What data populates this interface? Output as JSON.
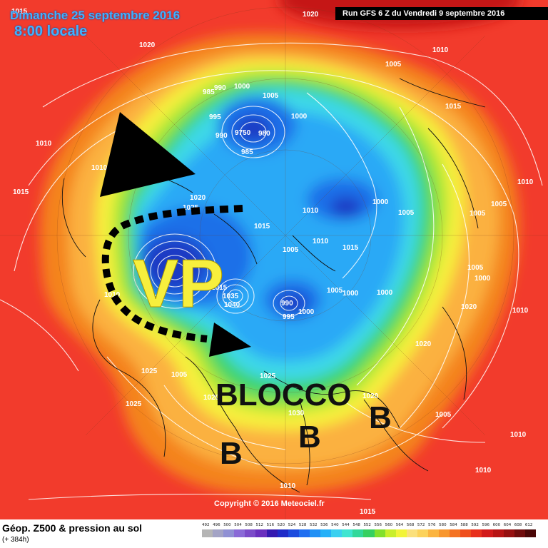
{
  "header": {
    "date": "Dimanche 25 septembre 2016",
    "time": "8:00 locale",
    "run": "Run GFS 6 Z du Vendredi 9 septembre 2016"
  },
  "annotations": {
    "vortex": "VP",
    "block": "BLOCCO",
    "low_marker": "B"
  },
  "isobars": {
    "labels": [
      "1015",
      "1020",
      "1010",
      "1005",
      "1000",
      "995",
      "990",
      "985",
      "980",
      "9750",
      "1025",
      "1030",
      "1035",
      "1040",
      "1045"
    ]
  },
  "footer": {
    "copyright": "Copyright © 2016 Meteociel.fr",
    "title": "Géop. Z500 & pression au sol",
    "forecast": "(+ 384h)"
  },
  "legend": {
    "scale": [
      {
        "v": "492",
        "c": "#b5b5b5"
      },
      {
        "v": "496",
        "c": "#a3a3c5"
      },
      {
        "v": "500",
        "c": "#9090d4"
      },
      {
        "v": "504",
        "c": "#8a6ad7"
      },
      {
        "v": "508",
        "c": "#7b4bc9"
      },
      {
        "v": "512",
        "c": "#6a2fbe"
      },
      {
        "v": "516",
        "c": "#3419b0"
      },
      {
        "v": "520",
        "c": "#1e2bc8"
      },
      {
        "v": "524",
        "c": "#1b4bde"
      },
      {
        "v": "528",
        "c": "#1f6ef0"
      },
      {
        "v": "532",
        "c": "#2090f5"
      },
      {
        "v": "536",
        "c": "#25b0f8"
      },
      {
        "v": "540",
        "c": "#3ad0f0"
      },
      {
        "v": "544",
        "c": "#3fe5d0"
      },
      {
        "v": "548",
        "c": "#32d89a"
      },
      {
        "v": "552",
        "c": "#36d060"
      },
      {
        "v": "556",
        "c": "#82e02b"
      },
      {
        "v": "560",
        "c": "#c9ef2a"
      },
      {
        "v": "564",
        "c": "#f2f438"
      },
      {
        "v": "568",
        "c": "#fbe07c"
      },
      {
        "v": "572",
        "c": "#fcd25a"
      },
      {
        "v": "576",
        "c": "#fbb43f"
      },
      {
        "v": "580",
        "c": "#f8962d"
      },
      {
        "v": "584",
        "c": "#f47222"
      },
      {
        "v": "588",
        "c": "#ef4e1c"
      },
      {
        "v": "592",
        "c": "#e8301c"
      },
      {
        "v": "596",
        "c": "#d21a1a"
      },
      {
        "v": "600",
        "c": "#b71414"
      },
      {
        "v": "604",
        "c": "#961010"
      },
      {
        "v": "608",
        "c": "#6f0c0c"
      },
      {
        "v": "612",
        "c": "#4a0707"
      }
    ]
  },
  "colors": {
    "red": "#f23b2c",
    "orange": "#f48020",
    "yellow": "#f7ef3d",
    "green": "#42d36a",
    "cyan": "#3dd8e8",
    "blue": "#1e6fe8",
    "deepblue": "#1a3bc4",
    "title_text": "#3fb2ff"
  }
}
